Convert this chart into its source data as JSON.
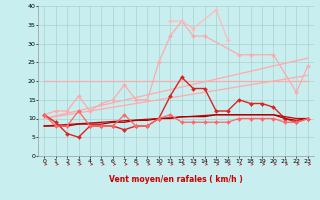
{
  "x": [
    0,
    1,
    2,
    3,
    4,
    5,
    6,
    7,
    8,
    9,
    10,
    11,
    12,
    13,
    14,
    15,
    16,
    17,
    18,
    19,
    20,
    21,
    22,
    23
  ],
  "series": [
    {
      "y": [
        20,
        20,
        20,
        20,
        20,
        20,
        20,
        20,
        20,
        20,
        20,
        20,
        20,
        20,
        20,
        20,
        20,
        20,
        20,
        20,
        20,
        20,
        20,
        20
      ],
      "color": "#ffaaaa",
      "lw": 0.9,
      "marker": null,
      "linestyle": "-"
    },
    {
      "y": [
        10,
        10.7,
        11.4,
        12.1,
        12.8,
        13.5,
        14.2,
        14.9,
        15.6,
        16.3,
        17,
        17.7,
        18.4,
        19.1,
        19.8,
        20.5,
        21.2,
        21.9,
        22.6,
        23.3,
        24,
        24.7,
        25.4,
        26.1
      ],
      "color": "#ffaaaa",
      "lw": 0.9,
      "marker": null,
      "linestyle": "-"
    },
    {
      "y": [
        10,
        10.5,
        11,
        11.5,
        12,
        12.5,
        13,
        13.5,
        14,
        14.5,
        15,
        15.5,
        16,
        16.5,
        17,
        17.5,
        18,
        18.5,
        19,
        19.5,
        20,
        20.5,
        21,
        21.5
      ],
      "color": "#ffaaaa",
      "lw": 0.9,
      "marker": null,
      "linestyle": "-"
    },
    {
      "y": [
        11,
        12,
        12,
        16,
        12,
        14,
        15,
        19,
        15,
        15,
        25,
        32,
        36,
        32,
        32,
        null,
        null,
        27,
        27,
        null,
        27,
        null,
        17,
        24
      ],
      "color": "#ffaaaa",
      "lw": 0.9,
      "marker": "D",
      "markersize": 2,
      "linestyle": "-"
    },
    {
      "y": [
        null,
        null,
        null,
        null,
        null,
        null,
        null,
        null,
        null,
        null,
        null,
        36,
        36,
        34,
        null,
        39,
        31,
        null,
        null,
        null,
        null,
        null,
        null,
        null
      ],
      "color": "#ffbbbb",
      "lw": 0.9,
      "marker": "D",
      "markersize": 2,
      "linestyle": "-"
    },
    {
      "y": [
        11,
        9,
        6,
        5,
        8,
        8,
        8,
        7,
        8,
        8,
        10,
        16,
        21,
        18,
        18,
        12,
        12,
        15,
        14,
        14,
        13,
        10,
        9,
        10
      ],
      "color": "#dd2222",
      "lw": 1.0,
      "marker": "D",
      "markersize": 2,
      "linestyle": "-"
    },
    {
      "y": [
        8,
        8.2,
        8.4,
        8.6,
        8.8,
        9.0,
        9.2,
        9.4,
        9.6,
        9.8,
        10,
        10.2,
        10.4,
        10.6,
        10.8,
        11.0,
        11.0,
        11.0,
        11.0,
        11.0,
        11.0,
        10.5,
        10,
        10
      ],
      "color": "#cc0000",
      "lw": 0.9,
      "marker": null,
      "linestyle": "-"
    },
    {
      "y": [
        8,
        8,
        8,
        8.5,
        8.5,
        8.5,
        9,
        9,
        9.5,
        9.5,
        10,
        10,
        10.5,
        10.5,
        10.5,
        11,
        11,
        11,
        11,
        11,
        11,
        10,
        9.5,
        10
      ],
      "color": "#aa0000",
      "lw": 0.9,
      "marker": null,
      "linestyle": "-"
    },
    {
      "y": [
        11,
        8,
        8,
        12,
        8,
        8,
        8,
        11,
        8,
        8,
        10,
        11,
        9,
        9,
        9,
        9,
        9,
        10,
        10,
        10,
        10,
        9,
        9,
        10
      ],
      "color": "#ff6666",
      "lw": 0.9,
      "marker": "D",
      "markersize": 2,
      "linestyle": "-"
    }
  ],
  "wind_arrows": [
    0,
    1,
    2,
    3,
    4,
    5,
    6,
    7,
    8,
    9,
    10,
    11,
    12,
    13,
    14,
    15,
    16,
    17,
    18,
    19,
    20,
    21,
    22,
    23
  ],
  "xlabel": "Vent moyen/en rafales ( km/h )",
  "ylim": [
    0,
    40
  ],
  "xlim": [
    -0.5,
    23.5
  ],
  "yticks": [
    0,
    5,
    10,
    15,
    20,
    25,
    30,
    35,
    40
  ],
  "xticks": [
    0,
    1,
    2,
    3,
    4,
    5,
    6,
    7,
    8,
    9,
    10,
    11,
    12,
    13,
    14,
    15,
    16,
    17,
    18,
    19,
    20,
    21,
    22,
    23
  ],
  "bg_color": "#c8eef0",
  "grid_color": "#aacccc",
  "arrow_color": "#cc2222"
}
